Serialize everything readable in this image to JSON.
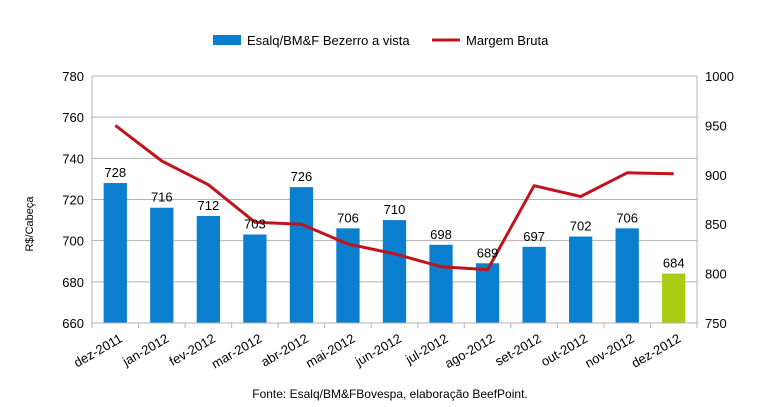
{
  "chart_data": {
    "type": "bar",
    "title": "",
    "ylabel": "R$/Cabeça",
    "y2label": "",
    "xlabel": "",
    "source": "Fonte: Esalq/BM&FBovespa, elaboração BeefPoint.",
    "categories": [
      "dez-2011",
      "jan-2012",
      "fev-2012",
      "mar-2012",
      "abr-2012",
      "mai-2012",
      "jun-2012",
      "jul-2012",
      "ago-2012",
      "set-2012",
      "out-2012",
      "nov-2012",
      "dez-2012"
    ],
    "ylim": [
      660,
      780
    ],
    "yticks": [
      660,
      680,
      700,
      720,
      740,
      760,
      780
    ],
    "y2lim": [
      750,
      1000
    ],
    "y2ticks": [
      750,
      800,
      850,
      900,
      950,
      1000
    ],
    "legend_position": "top",
    "grid": true,
    "series": [
      {
        "name": "Esalq/BM&F Bezerro a vista",
        "type": "bar",
        "axis": "left",
        "color": "#0a7fd0",
        "values": [
          728,
          716,
          712,
          703,
          726,
          706,
          710,
          698,
          689,
          697,
          702,
          706,
          684
        ],
        "labels": [
          "728",
          "716",
          "712",
          "703",
          "726",
          "706",
          "710",
          "698",
          "689",
          "697",
          "702",
          "706",
          "684"
        ],
        "highlight_last_color": "#a8cc12"
      },
      {
        "name": "Margem Bruta",
        "type": "line",
        "axis": "right",
        "color": "#c0141c",
        "values": [
          950,
          914,
          890,
          852,
          850,
          830,
          820,
          807,
          804,
          889,
          878,
          902,
          901
        ]
      }
    ]
  }
}
